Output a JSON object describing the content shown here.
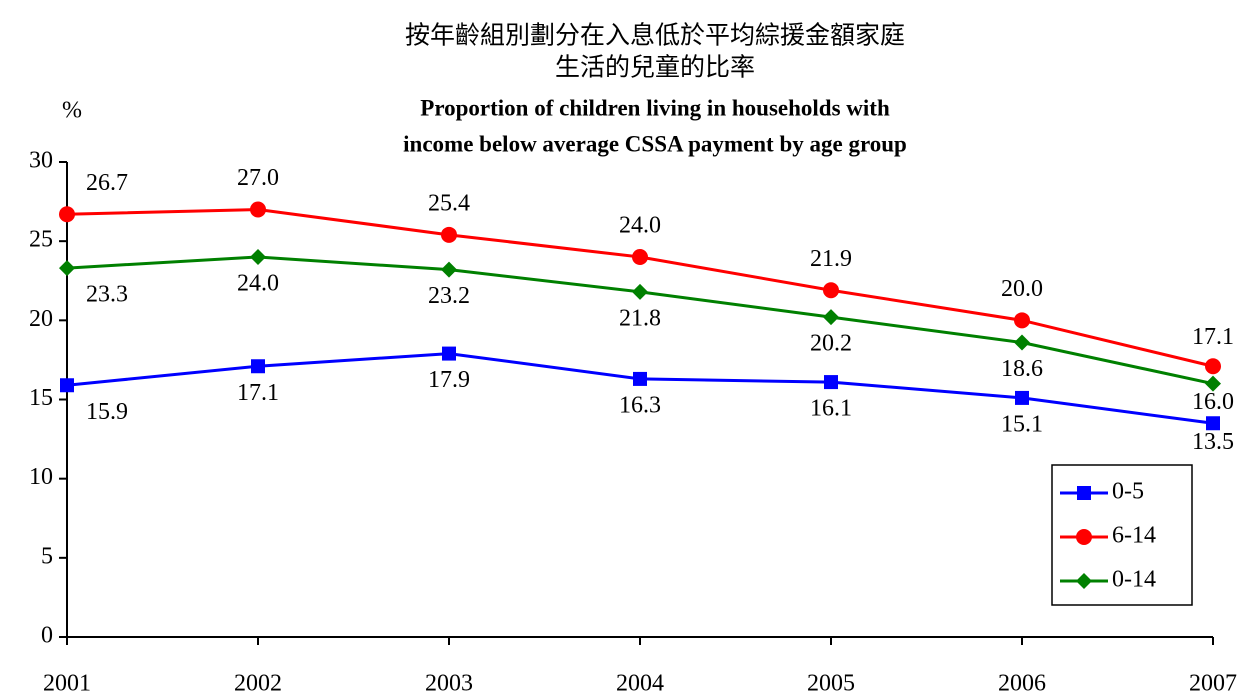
{
  "chart_data": {
    "type": "line",
    "title": [
      "按年齡組別劃分在入息低於平均綜援金額家庭",
      "生活的兒童的比率"
    ],
    "subtitle": [
      "Proportion of children living in households with",
      "income below average CSSA payment  by age group"
    ],
    "y_label": "%",
    "categories": [
      "2001",
      "2002",
      "2003",
      "2004",
      "2005",
      "2006",
      "2007"
    ],
    "series": [
      {
        "name": "0-5",
        "color": "#0000ff",
        "marker": "square",
        "label_position": "below",
        "values": [
          15.9,
          17.1,
          17.9,
          16.3,
          16.1,
          15.1,
          13.5
        ],
        "value_labels": [
          "15.9",
          "17.1",
          "17.9",
          "16.3",
          "16.1",
          "15.1",
          "13.5"
        ]
      },
      {
        "name": "6-14",
        "color": "#ff0000",
        "marker": "circle",
        "label_position": "above",
        "values": [
          26.7,
          27.0,
          25.4,
          24.0,
          21.9,
          20.0,
          17.1
        ],
        "value_labels": [
          "26.7",
          "27.0",
          "25.4",
          "24.0",
          "21.9",
          "20.0",
          "17.1"
        ]
      },
      {
        "name": "0-14",
        "color": "#008000",
        "marker": "diamond",
        "label_position": "below",
        "values": [
          23.3,
          24.0,
          23.2,
          21.8,
          20.2,
          18.6,
          16.0
        ],
        "value_labels": [
          "23.3",
          "24.0",
          "23.2",
          "21.8",
          "20.2",
          "18.6",
          "16.0"
        ]
      }
    ],
    "ylim": [
      0,
      30
    ],
    "yticks": [
      0,
      5,
      10,
      15,
      20,
      25,
      30
    ],
    "grid": false,
    "legend": "lower right"
  }
}
